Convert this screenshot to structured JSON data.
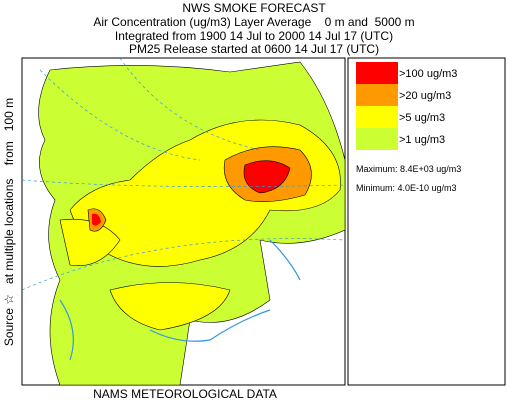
{
  "header": {
    "title": "NWS SMOKE FORECAST",
    "lines": [
      "Air Concentration (ug/m3) Layer Average    0 m and  5000 m",
      "Integrated from 1900 14 Jul to 2000 14 Jul 17 (UTC)",
      "PM25 Release started at 0600 14 Jul 17 (UTC)"
    ]
  },
  "side_label": "Source ☆   at multiple locations    from   100 m",
  "legend": {
    "items": [
      {
        "label": ">100 ug/m3",
        "color": "#ff0000"
      },
      {
        "label": ">20 ug/m3",
        "color": "#ff9900"
      },
      {
        "label": ">5 ug/m3",
        "color": "#ffff00"
      },
      {
        "label": ">1 ug/m3",
        "color": "#ccff33"
      }
    ],
    "maximum": "Maximum: 8.4E+03 ug/m3",
    "minimum": "Minimum: 4.0E-10 ug/m3"
  },
  "footer": "NAMS METEOROLOGICAL DATA"
}
